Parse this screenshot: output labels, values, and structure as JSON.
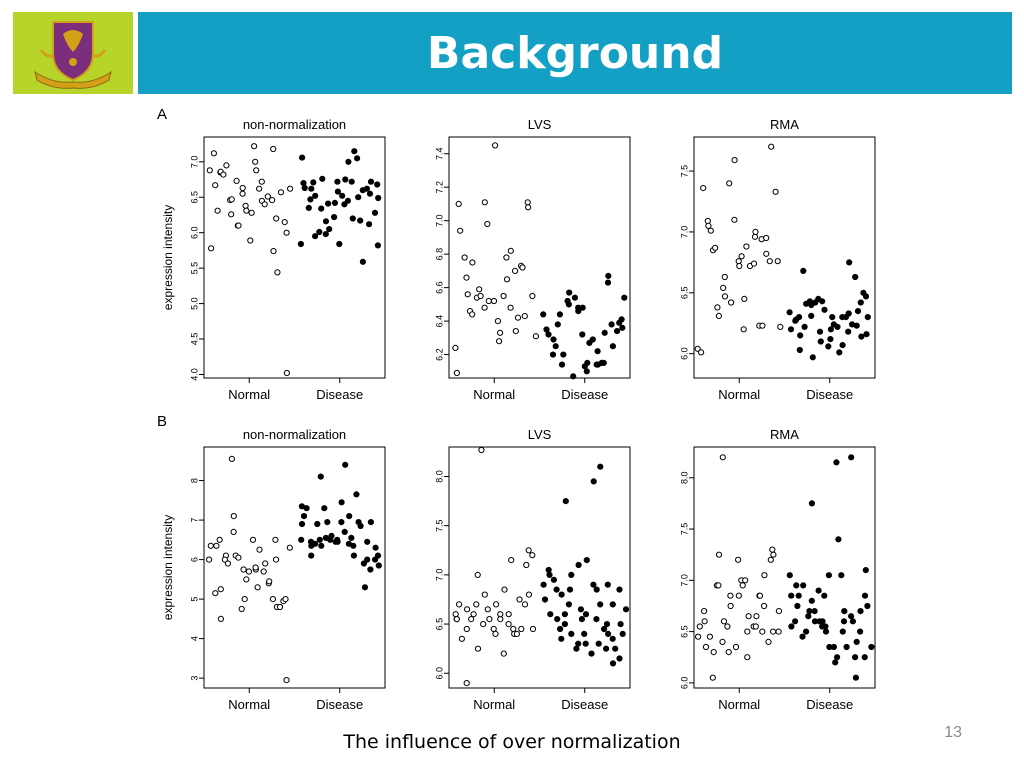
{
  "slide": {
    "title": "Background",
    "caption": "The influence of over normalization",
    "page_number": "13",
    "colors": {
      "title_bar": "#14a0c4",
      "logo_bg": "#b7d42a",
      "title_text": "#ffffff"
    }
  },
  "figure": {
    "panel_a_label": "A",
    "panel_b_label": "B",
    "ylabel": "expression intensity"
  },
  "chart_data": [
    {
      "id": "A-non-normalization",
      "type": "scatter",
      "title": "non-normalization",
      "title_font": "sans",
      "ylabel": "expression intensity",
      "categories": [
        "Normal",
        "Disease"
      ],
      "yticks": [
        "4.0",
        "4.5",
        "5.0",
        "5.5",
        "6.0",
        "6.5",
        "7.0"
      ],
      "ylim": [
        3.95,
        7.35
      ],
      "series": [
        {
          "name": "Normal",
          "filled": false,
          "values": [
            5.78,
            6.88,
            7.12,
            6.67,
            6.31,
            6.85,
            6.86,
            6.82,
            6.95,
            6.46,
            6.47,
            6.26,
            6.73,
            6.1,
            6.1,
            6.55,
            6.63,
            6.38,
            6.31,
            5.89,
            6.28,
            7.22,
            7.0,
            6.88,
            6.62,
            6.72,
            6.45,
            6.4,
            6.51,
            6.46,
            7.18,
            5.74,
            6.2,
            5.44,
            6.57,
            6.15,
            6.0,
            4.02,
            6.62
          ]
        },
        {
          "name": "Disease",
          "filled": true,
          "values": [
            5.84,
            7.06,
            6.7,
            6.63,
            6.35,
            6.47,
            6.62,
            6.71,
            6.52,
            5.95,
            6.01,
            6.34,
            6.76,
            6.16,
            5.98,
            6.41,
            6.05,
            6.22,
            6.42,
            6.72,
            5.84,
            6.58,
            6.52,
            6.75,
            6.4,
            7.0,
            6.45,
            6.2,
            6.72,
            7.15,
            7.05,
            6.5,
            6.17,
            6.6,
            5.59,
            6.62,
            6.55,
            6.12,
            6.72,
            6.28,
            6.68,
            6.49,
            5.82
          ]
        }
      ]
    },
    {
      "id": "A-LVS",
      "type": "scatter",
      "title": "LVS",
      "title_font": "sans",
      "ylabel": "",
      "categories": [
        "Normal",
        "Disease"
      ],
      "yticks": [
        "6.2",
        "6.4",
        "6.6",
        "6.8",
        "7.0",
        "7.2",
        "7.4"
      ],
      "ylim": [
        6.06,
        7.5
      ],
      "series": [
        {
          "name": "Normal",
          "filled": false,
          "values": [
            6.24,
            6.09,
            7.1,
            6.94,
            6.78,
            6.66,
            6.56,
            6.46,
            6.44,
            6.75,
            6.54,
            6.59,
            6.55,
            6.48,
            7.11,
            6.98,
            6.52,
            6.52,
            7.45,
            6.4,
            6.33,
            6.28,
            6.55,
            6.65,
            6.78,
            6.82,
            6.48,
            6.34,
            6.7,
            6.42,
            6.73,
            6.72,
            6.43,
            7.11,
            7.08,
            6.55,
            6.31
          ]
        },
        {
          "name": "Disease",
          "filled": true,
          "values": [
            6.44,
            6.35,
            6.32,
            6.2,
            6.29,
            6.25,
            6.38,
            6.44,
            6.14,
            6.2,
            6.52,
            6.57,
            6.5,
            6.07,
            6.54,
            6.48,
            6.46,
            6.32,
            6.48,
            6.13,
            6.1,
            6.15,
            6.27,
            6.29,
            6.14,
            6.22,
            6.14,
            6.15,
            6.33,
            6.15,
            6.67,
            6.63,
            6.38,
            6.25,
            6.34,
            6.39,
            6.41,
            6.36,
            6.54
          ]
        }
      ]
    },
    {
      "id": "A-RMA",
      "type": "scatter",
      "title": "RMA",
      "title_font": "sans",
      "ylabel": "",
      "categories": [
        "Normal",
        "Disease"
      ],
      "yticks": [
        "6.0",
        "6.5",
        "7.0",
        "7.5"
      ],
      "ylim": [
        5.8,
        7.78
      ],
      "series": [
        {
          "name": "Normal",
          "filled": false,
          "values": [
            6.04,
            6.01,
            7.36,
            7.09,
            7.05,
            7.01,
            6.85,
            6.87,
            6.38,
            6.31,
            6.54,
            6.47,
            6.63,
            7.4,
            6.42,
            7.1,
            7.59,
            6.76,
            6.72,
            6.8,
            6.2,
            6.45,
            6.88,
            6.72,
            6.74,
            6.96,
            7.0,
            6.23,
            6.23,
            6.94,
            6.82,
            6.95,
            6.76,
            7.7,
            7.33,
            6.76,
            6.22
          ]
        },
        {
          "name": "Disease",
          "filled": true,
          "values": [
            6.34,
            6.2,
            6.27,
            6.28,
            6.3,
            6.15,
            6.03,
            6.22,
            6.68,
            6.41,
            6.43,
            6.4,
            6.31,
            5.97,
            6.42,
            6.45,
            6.18,
            6.1,
            6.43,
            6.36,
            6.06,
            6.2,
            6.12,
            6.3,
            6.24,
            6.01,
            6.22,
            6.3,
            6.07,
            6.3,
            6.18,
            6.33,
            6.75,
            6.24,
            6.63,
            6.35,
            6.23,
            6.42,
            6.14,
            6.5,
            6.16,
            6.47,
            6.3
          ]
        }
      ]
    },
    {
      "id": "B-non-normalization",
      "type": "scatter",
      "title": "non-normalization",
      "title_font": "sans",
      "ylabel": "expression intensity",
      "categories": [
        "Normal",
        "Disease"
      ],
      "yticks": [
        "3",
        "4",
        "5",
        "6",
        "7",
        "8"
      ],
      "ylim": [
        2.75,
        8.85
      ],
      "series": [
        {
          "name": "Normal",
          "filled": false,
          "values": [
            6.0,
            6.35,
            5.15,
            6.35,
            6.5,
            4.5,
            5.25,
            6.1,
            6.0,
            5.9,
            8.55,
            6.7,
            7.1,
            6.1,
            6.05,
            4.75,
            5.75,
            5.0,
            5.5,
            5.7,
            6.5,
            5.75,
            5.8,
            5.3,
            6.25,
            5.9,
            5.7,
            5.4,
            5.45,
            5.0,
            6.5,
            6.0,
            4.8,
            4.8,
            4.95,
            2.95,
            5.0,
            6.3
          ]
        },
        {
          "name": "Disease",
          "filled": true,
          "values": [
            6.5,
            6.9,
            7.35,
            7.1,
            7.3,
            6.35,
            6.45,
            6.1,
            6.4,
            6.9,
            6.5,
            6.35,
            8.1,
            7.3,
            6.55,
            6.95,
            6.5,
            6.6,
            6.45,
            6.5,
            6.45,
            7.45,
            6.95,
            6.7,
            8.4,
            7.1,
            6.4,
            6.55,
            6.35,
            6.1,
            7.65,
            6.85,
            6.95,
            5.9,
            5.3,
            6.0,
            6.45,
            5.75,
            6.95,
            6.0,
            6.3,
            6.1,
            5.85
          ]
        }
      ]
    },
    {
      "id": "B-LVS",
      "type": "scatter",
      "title": "LVS",
      "title_font": "serif",
      "ylabel": "",
      "categories": [
        "Normal",
        "Disease"
      ],
      "yticks": [
        "6.0",
        "6.5",
        "7.0",
        "7.5",
        "8.0"
      ],
      "ylim": [
        5.85,
        8.3
      ],
      "series": [
        {
          "name": "Normal",
          "filled": false,
          "values": [
            6.6,
            6.55,
            6.55,
            6.7,
            6.35,
            6.45,
            5.9,
            6.65,
            6.55,
            6.6,
            6.7,
            6.25,
            7.0,
            8.27,
            6.5,
            6.8,
            6.65,
            6.55,
            6.45,
            6.4,
            6.7,
            6.55,
            6.6,
            6.2,
            6.85,
            6.6,
            6.5,
            7.15,
            6.45,
            6.4,
            6.4,
            6.45,
            6.75,
            6.7,
            7.1,
            7.25,
            6.8,
            7.2,
            6.45
          ]
        },
        {
          "name": "Disease",
          "filled": true,
          "values": [
            6.9,
            6.75,
            7.0,
            7.05,
            6.6,
            6.95,
            6.85,
            6.55,
            6.45,
            6.35,
            6.8,
            6.6,
            6.5,
            7.75,
            6.7,
            6.85,
            7.0,
            6.4,
            6.25,
            6.3,
            7.1,
            6.65,
            6.55,
            6.4,
            6.6,
            6.3,
            7.15,
            6.2,
            6.9,
            7.95,
            6.55,
            6.85,
            6.3,
            6.7,
            8.1,
            6.45,
            6.25,
            6.4,
            6.5,
            6.9,
            6.35,
            6.7,
            6.1,
            6.25,
            6.15,
            6.5,
            6.85,
            6.4,
            6.65
          ]
        }
      ]
    },
    {
      "id": "B-RMA",
      "type": "scatter",
      "title": "RMA",
      "title_font": "serif",
      "ylabel": "",
      "categories": [
        "Normal",
        "Disease"
      ],
      "yticks": [
        "6.0",
        "6.5",
        "7.0",
        "7.5",
        "8.0"
      ],
      "ylim": [
        5.95,
        8.3
      ],
      "series": [
        {
          "name": "Normal",
          "filled": false,
          "values": [
            6.45,
            6.55,
            6.6,
            6.7,
            6.35,
            6.45,
            6.05,
            6.3,
            6.95,
            6.95,
            7.25,
            6.4,
            8.2,
            6.6,
            6.55,
            6.3,
            6.85,
            6.75,
            6.35,
            7.2,
            6.85,
            7.0,
            6.95,
            7.0,
            6.25,
            6.5,
            6.65,
            6.55,
            6.55,
            6.65,
            6.85,
            6.85,
            6.5,
            6.75,
            7.05,
            6.4,
            7.2,
            6.5,
            7.3,
            7.25,
            6.5,
            6.7
          ]
        },
        {
          "name": "Disease",
          "filled": true,
          "values": [
            6.85,
            7.05,
            6.55,
            6.95,
            6.6,
            6.75,
            6.85,
            6.45,
            6.95,
            6.5,
            6.65,
            6.7,
            6.8,
            7.75,
            6.6,
            6.7,
            6.9,
            6.6,
            6.55,
            6.6,
            6.55,
            6.85,
            6.5,
            6.35,
            7.05,
            6.35,
            6.2,
            6.25,
            8.15,
            7.4,
            7.05,
            6.5,
            6.6,
            6.7,
            6.35,
            6.65,
            6.6,
            8.2,
            6.05,
            6.25,
            6.4,
            6.7,
            6.5,
            6.25,
            7.1,
            6.85,
            6.75,
            6.35
          ]
        }
      ]
    }
  ]
}
